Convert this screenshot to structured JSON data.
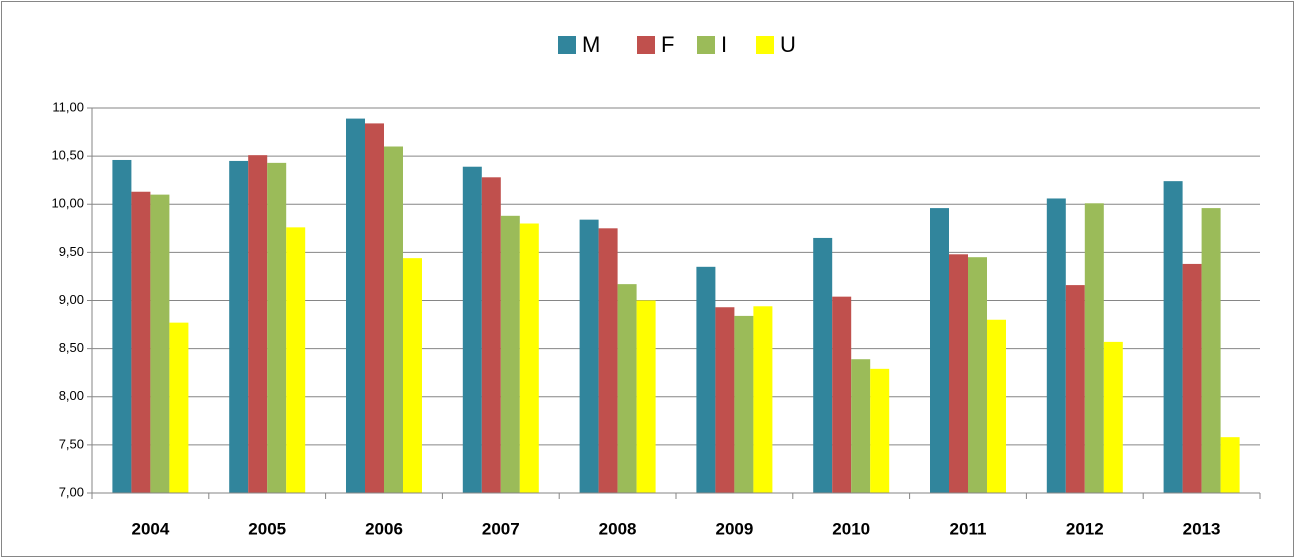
{
  "chart_data": {
    "type": "bar",
    "categories": [
      "2004",
      "2005",
      "2006",
      "2007",
      "2008",
      "2009",
      "2010",
      "2011",
      "2012",
      "2013"
    ],
    "series": [
      {
        "name": "M",
        "color": "#31859c",
        "values": [
          10.46,
          10.45,
          10.89,
          10.39,
          9.84,
          9.35,
          9.65,
          9.96,
          10.06,
          10.24
        ]
      },
      {
        "name": "F",
        "color": "#c0504d",
        "values": [
          10.13,
          10.51,
          10.84,
          10.28,
          9.75,
          8.93,
          9.04,
          9.48,
          9.16,
          9.38
        ]
      },
      {
        "name": "I",
        "color": "#9bbb59",
        "values": [
          10.1,
          10.43,
          10.6,
          9.88,
          9.17,
          8.84,
          8.39,
          9.45,
          10.01,
          9.96
        ]
      },
      {
        "name": "U",
        "color": "#ffff00",
        "values": [
          8.77,
          9.76,
          9.44,
          9.8,
          9.0,
          8.94,
          8.29,
          8.8,
          8.57,
          7.58
        ]
      }
    ],
    "ylim": [
      7,
      11
    ],
    "yticks": [
      {
        "value": 7,
        "label": "7,00"
      },
      {
        "value": 7.5,
        "label": "7,50"
      },
      {
        "value": 8,
        "label": "8,00"
      },
      {
        "value": 8.5,
        "label": "8,50"
      },
      {
        "value": 9,
        "label": "9,00"
      },
      {
        "value": 9.5,
        "label": "9,50"
      },
      {
        "value": 10,
        "label": "10,00"
      },
      {
        "value": 10.5,
        "label": "10,50"
      },
      {
        "value": 11,
        "label": "11,00"
      }
    ],
    "grid": true,
    "legend": "top"
  }
}
